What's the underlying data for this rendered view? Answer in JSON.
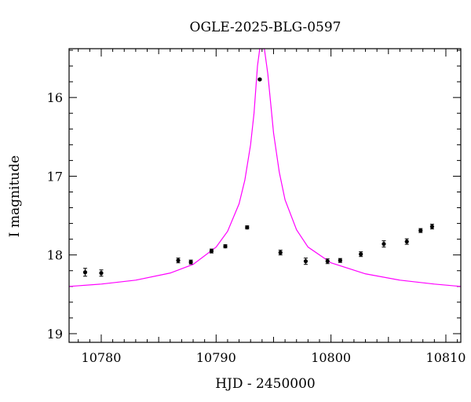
{
  "chart_data": {
    "type": "scatter",
    "title": "OGLE-2025-BLG-0597",
    "xlabel": "HJD - 2450000",
    "ylabel": "I magnitude",
    "xlim": [
      10777.2,
      10811.3
    ],
    "ylim": [
      19.11,
      15.38
    ],
    "y_inverted": true,
    "x_ticks": [
      10780,
      10790,
      10800,
      10810
    ],
    "x_tick_labels": [
      "10780",
      "10790",
      "10800",
      "10810"
    ],
    "y_ticks": [
      16,
      17,
      18,
      19
    ],
    "y_tick_labels": [
      "16",
      "17",
      "18",
      "19"
    ],
    "grid": false,
    "legend": "none",
    "points": [
      {
        "x": 10778.6,
        "y": 18.22,
        "err": 0.05
      },
      {
        "x": 10780.0,
        "y": 18.23,
        "err": 0.04
      },
      {
        "x": 10786.7,
        "y": 18.07,
        "err": 0.03
      },
      {
        "x": 10787.8,
        "y": 18.09,
        "err": 0.025
      },
      {
        "x": 10789.6,
        "y": 17.95,
        "err": 0.025
      },
      {
        "x": 10790.8,
        "y": 17.89,
        "err": 0.02
      },
      {
        "x": 10792.7,
        "y": 17.65,
        "err": 0.02
      },
      {
        "x": 10793.8,
        "y": 15.77,
        "err": 0.01
      },
      {
        "x": 10795.6,
        "y": 17.97,
        "err": 0.03
      },
      {
        "x": 10797.8,
        "y": 18.08,
        "err": 0.04
      },
      {
        "x": 10799.7,
        "y": 18.08,
        "err": 0.03
      },
      {
        "x": 10800.8,
        "y": 18.07,
        "err": 0.025
      },
      {
        "x": 10802.6,
        "y": 17.99,
        "err": 0.03
      },
      {
        "x": 10804.6,
        "y": 17.86,
        "err": 0.04
      },
      {
        "x": 10806.6,
        "y": 17.83,
        "err": 0.035
      },
      {
        "x": 10807.8,
        "y": 17.69,
        "err": 0.025
      },
      {
        "x": 10808.8,
        "y": 17.64,
        "err": 0.03
      }
    ],
    "model": {
      "type": "line",
      "color": "#ff00ff",
      "x": [
        10777.2,
        10780,
        10783,
        10786,
        10788,
        10790,
        10791,
        10792,
        10792.5,
        10793,
        10793.3,
        10793.6,
        10793.8,
        10794,
        10794.2,
        10794.5,
        10795,
        10795.5,
        10796,
        10797,
        10798,
        10800,
        10803,
        10806,
        10809,
        10811.3
      ],
      "y": [
        18.4,
        18.37,
        18.32,
        18.23,
        18.12,
        17.9,
        17.7,
        17.35,
        17.05,
        16.6,
        16.2,
        15.6,
        15.38,
        15.38,
        15.38,
        15.7,
        16.45,
        16.95,
        17.3,
        17.68,
        17.9,
        18.1,
        18.24,
        18.32,
        18.37,
        18.4
      ]
    },
    "colors": {
      "points": "#000000",
      "model": "#ff00ff",
      "frame": "#000000"
    }
  }
}
